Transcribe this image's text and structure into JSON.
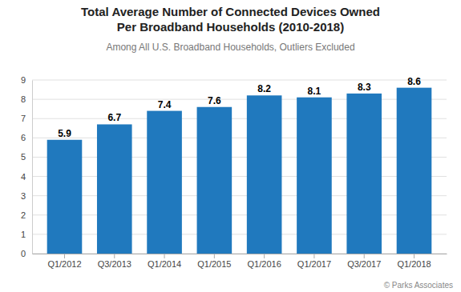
{
  "chart_data": {
    "type": "bar",
    "title": "Total Average Number of Connected Devices Owned\nPer Broadband Households (2010-2018)",
    "subtitle": "Among All U.S. Broadband Households, Outliers Excluded",
    "annotations": [
      "© Parks Associates"
    ],
    "categories": [
      "Q1/2012",
      "Q3/2013",
      "Q1/2014",
      "Q1/2015",
      "Q1/2016",
      "Q1/2017",
      "Q3/2017",
      "Q1/2018"
    ],
    "values": [
      5.9,
      6.7,
      7.4,
      7.6,
      8.2,
      8.1,
      8.3,
      8.6
    ],
    "color": "#2079be",
    "ylim": [
      0,
      9
    ],
    "yticks": [
      0,
      1,
      2,
      3,
      4,
      5,
      6,
      7,
      8,
      9
    ],
    "grid": true,
    "data_labels": true
  }
}
